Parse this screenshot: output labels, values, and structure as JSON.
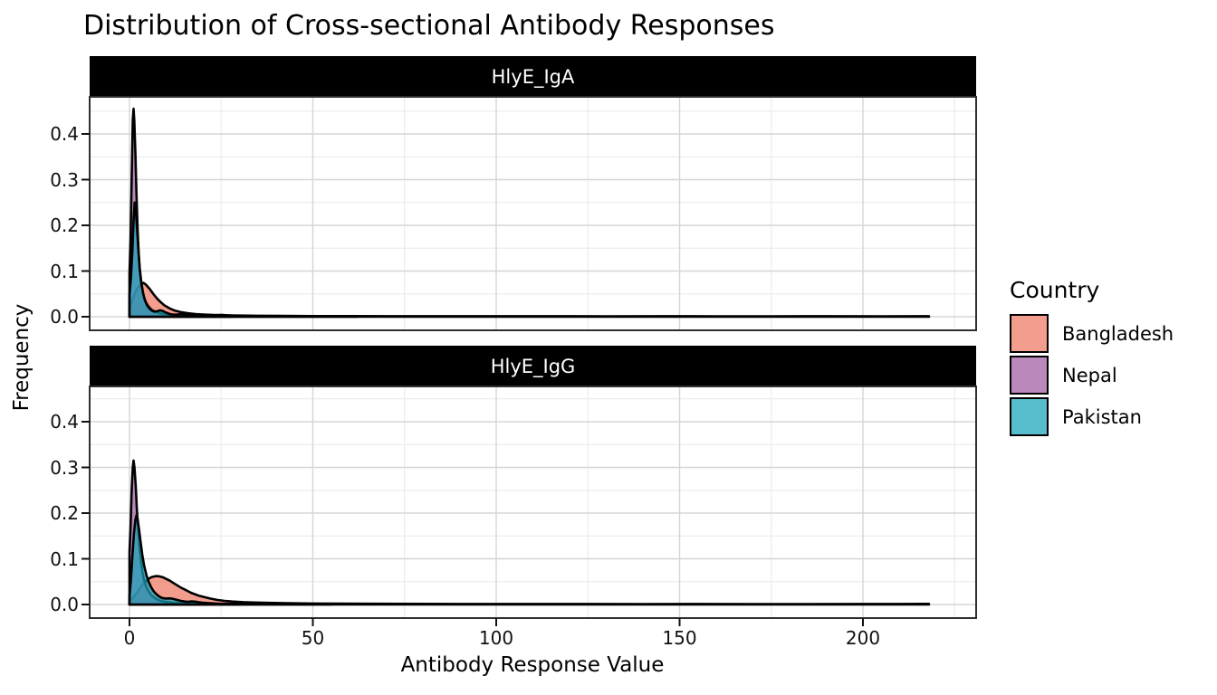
{
  "chart_data": {
    "type": "area",
    "title": "Distribution of Cross-sectional Antibody Responses",
    "xlabel": "Antibody Response Value",
    "ylabel": "Frequency",
    "legend_title": "Country",
    "legend_position": "right",
    "grid": "major+minor",
    "background": "#FFFFFF",
    "strip_bg": "#000000",
    "strip_fg": "#FFFFFF",
    "outline_color": "#000000",
    "grid_major_color": "#D5D5D5",
    "grid_minor_color": "#ECECEC",
    "panel_border_color": "#2E2E2E",
    "xlim": [
      -10.9,
      230.9
    ],
    "ylim": [
      -0.03,
      0.48
    ],
    "x_ticks": [
      {
        "value": 0,
        "label": "0"
      },
      {
        "value": 50,
        "label": "50"
      },
      {
        "value": 100,
        "label": "100"
      },
      {
        "value": 150,
        "label": "150"
      },
      {
        "value": 200,
        "label": "200"
      }
    ],
    "x_minor_ticks": [
      25,
      75,
      125,
      175,
      225
    ],
    "y_ticks": [
      {
        "value": 0.0,
        "label": "0.0"
      },
      {
        "value": 0.1,
        "label": "0.1"
      },
      {
        "value": 0.2,
        "label": "0.2"
      },
      {
        "value": 0.3,
        "label": "0.3"
      },
      {
        "value": 0.4,
        "label": "0.4"
      }
    ],
    "y_minor_ticks": [
      0.05,
      0.15,
      0.25,
      0.35,
      0.45
    ],
    "countries": [
      {
        "name": "Bangladesh",
        "fill": "rgba(238,119,98,0.72)",
        "swatch": "#F29D8E"
      },
      {
        "name": "Nepal",
        "fill": "rgba(160,90,160,0.72)",
        "swatch": "#BA88BA"
      },
      {
        "name": "Pakistan",
        "fill": "rgba(22,163,184,0.72)",
        "swatch": "#57BCCC"
      }
    ],
    "facets": [
      {
        "label": "HlyE_IgA",
        "series": [
          {
            "name": "Bangladesh",
            "peak_x": 3.8,
            "peak_y": 0.074,
            "points": [
              [
                0,
                0.018
              ],
              [
                1,
                0.042
              ],
              [
                2,
                0.06
              ],
              [
                3,
                0.071
              ],
              [
                3.8,
                0.074
              ],
              [
                4.5,
                0.07
              ],
              [
                5.5,
                0.061
              ],
              [
                6.5,
                0.05
              ],
              [
                7.5,
                0.04
              ],
              [
                8.5,
                0.032
              ],
              [
                9.5,
                0.025
              ],
              [
                11,
                0.018
              ],
              [
                12.5,
                0.013
              ],
              [
                14,
                0.01
              ],
              [
                16,
                0.0075
              ],
              [
                18,
                0.006
              ],
              [
                20,
                0.005
              ],
              [
                23,
                0.004
              ],
              [
                26,
                0.0032
              ],
              [
                30,
                0.0026
              ],
              [
                35,
                0.0021
              ],
              [
                42,
                0.0017
              ],
              [
                50,
                0.0014
              ],
              [
                60,
                0.0013
              ],
              [
                72,
                0.0012
              ],
              [
                85,
                0.0012
              ],
              [
                100,
                0.0011
              ],
              [
                115,
                0.0012
              ],
              [
                130,
                0.001
              ],
              [
                145,
                0.0011
              ],
              [
                160,
                0.001
              ],
              [
                175,
                0.001
              ],
              [
                190,
                0.0011
              ],
              [
                205,
                0.001
              ],
              [
                218,
                0.0012
              ]
            ]
          },
          {
            "name": "Nepal",
            "peak_x": 1.1,
            "peak_y": 0.455,
            "points": [
              [
                0,
                0.095
              ],
              [
                0.3,
                0.17
              ],
              [
                0.6,
                0.3
              ],
              [
                0.9,
                0.43
              ],
              [
                1.1,
                0.455
              ],
              [
                1.3,
                0.43
              ],
              [
                1.6,
                0.36
              ],
              [
                1.9,
                0.27
              ],
              [
                2.2,
                0.195
              ],
              [
                2.5,
                0.14
              ],
              [
                2.8,
                0.105
              ],
              [
                3.2,
                0.075
              ],
              [
                3.6,
                0.055
              ],
              [
                4,
                0.042
              ],
              [
                4.5,
                0.031
              ],
              [
                5,
                0.024
              ],
              [
                6,
                0.015
              ],
              [
                7,
                0.011
              ],
              [
                8,
                0.008
              ],
              [
                9,
                0.0065
              ],
              [
                10,
                0.005
              ],
              [
                12,
                0.0035
              ],
              [
                14,
                0.0025
              ],
              [
                17,
                0.002
              ],
              [
                20,
                0.0015
              ],
              [
                24,
                0.001
              ],
              [
                28,
                0.0008
              ]
            ]
          },
          {
            "name": "Pakistan",
            "peak_x": 1.4,
            "peak_y": 0.25,
            "points": [
              [
                0,
                0.048
              ],
              [
                0.4,
                0.085
              ],
              [
                0.8,
                0.145
              ],
              [
                1.1,
                0.21
              ],
              [
                1.4,
                0.25
              ],
              [
                1.7,
                0.24
              ],
              [
                2,
                0.2
              ],
              [
                2.4,
                0.15
              ],
              [
                2.8,
                0.105
              ],
              [
                3.2,
                0.075
              ],
              [
                3.7,
                0.051
              ],
              [
                4.2,
                0.036
              ],
              [
                4.8,
                0.025
              ],
              [
                5.4,
                0.018
              ],
              [
                6,
                0.014
              ],
              [
                6.8,
                0.011
              ],
              [
                7.6,
                0.012
              ],
              [
                8.4,
                0.014
              ],
              [
                9.2,
                0.012
              ],
              [
                10,
                0.009
              ],
              [
                11,
                0.006
              ],
              [
                12,
                0.0045
              ],
              [
                13,
                0.005
              ],
              [
                14,
                0.0055
              ],
              [
                15,
                0.005
              ],
              [
                16,
                0.004
              ],
              [
                17.5,
                0.003
              ],
              [
                19,
                0.002
              ],
              [
                21,
                0.0016
              ],
              [
                23,
                0.0028
              ],
              [
                25,
                0.0042
              ],
              [
                27,
                0.003
              ],
              [
                29,
                0.0018
              ],
              [
                32,
                0.001
              ],
              [
                36,
                0.0008
              ],
              [
                42,
                0.0006
              ],
              [
                50,
                0.0005
              ],
              [
                58,
                0.0004
              ],
              [
                62,
                0.0003
              ]
            ]
          }
        ]
      },
      {
        "label": "HlyE_IgG",
        "series": [
          {
            "name": "Bangladesh",
            "peak_x": 7.5,
            "peak_y": 0.062,
            "points": [
              [
                0,
                0.008
              ],
              [
                1,
                0.015
              ],
              [
                2,
                0.026
              ],
              [
                3,
                0.038
              ],
              [
                4,
                0.048
              ],
              [
                5,
                0.055
              ],
              [
                6,
                0.06
              ],
              [
                7,
                0.062
              ],
              [
                8,
                0.062
              ],
              [
                9,
                0.06
              ],
              [
                10,
                0.056
              ],
              [
                11,
                0.052
              ],
              [
                12,
                0.047
              ],
              [
                13,
                0.042
              ],
              [
                14,
                0.037
              ],
              [
                15,
                0.033
              ],
              [
                16,
                0.029
              ],
              [
                17,
                0.025
              ],
              [
                18,
                0.022
              ],
              [
                19,
                0.019
              ],
              [
                20,
                0.017
              ],
              [
                22,
                0.013
              ],
              [
                24,
                0.01
              ],
              [
                26,
                0.008
              ],
              [
                28,
                0.0066
              ],
              [
                31,
                0.0052
              ],
              [
                34,
                0.0043
              ],
              [
                38,
                0.0035
              ],
              [
                43,
                0.0028
              ],
              [
                50,
                0.0022
              ],
              [
                58,
                0.0018
              ],
              [
                68,
                0.0015
              ],
              [
                80,
                0.0013
              ],
              [
                95,
                0.0012
              ],
              [
                110,
                0.0012
              ],
              [
                125,
                0.0011
              ],
              [
                140,
                0.001
              ],
              [
                155,
                0.0011
              ],
              [
                170,
                0.001
              ],
              [
                185,
                0.001
              ],
              [
                200,
                0.0011
              ],
              [
                210,
                0.0012
              ],
              [
                218,
                0.0013
              ]
            ]
          },
          {
            "name": "Nepal",
            "peak_x": 1.1,
            "peak_y": 0.315,
            "points": [
              [
                0,
                0.115
              ],
              [
                0.3,
                0.17
              ],
              [
                0.6,
                0.25
              ],
              [
                0.9,
                0.3
              ],
              [
                1.1,
                0.315
              ],
              [
                1.35,
                0.3
              ],
              [
                1.7,
                0.26
              ],
              [
                2,
                0.21
              ],
              [
                2.4,
                0.16
              ],
              [
                2.8,
                0.12
              ],
              [
                3.2,
                0.09
              ],
              [
                3.6,
                0.068
              ],
              [
                4,
                0.053
              ],
              [
                4.5,
                0.04
              ],
              [
                5,
                0.031
              ],
              [
                6,
                0.02
              ],
              [
                7,
                0.0135
              ],
              [
                8,
                0.0095
              ],
              [
                9,
                0.007
              ],
              [
                10,
                0.0055
              ],
              [
                12,
                0.004
              ],
              [
                14,
                0.003
              ],
              [
                16,
                0.0025
              ],
              [
                19,
                0.002
              ],
              [
                22,
                0.0015
              ],
              [
                26,
                0.001
              ],
              [
                30,
                0.0008
              ]
            ]
          },
          {
            "name": "Pakistan",
            "peak_x": 1.9,
            "peak_y": 0.195,
            "points": [
              [
                0,
                0.018
              ],
              [
                0.4,
                0.055
              ],
              [
                0.8,
                0.105
              ],
              [
                1.2,
                0.155
              ],
              [
                1.6,
                0.185
              ],
              [
                1.9,
                0.195
              ],
              [
                2.2,
                0.188
              ],
              [
                2.6,
                0.165
              ],
              [
                3,
                0.138
              ],
              [
                3.5,
                0.108
              ],
              [
                4,
                0.085
              ],
              [
                4.6,
                0.065
              ],
              [
                5.2,
                0.05
              ],
              [
                5.9,
                0.038
              ],
              [
                6.6,
                0.029
              ],
              [
                7.4,
                0.022
              ],
              [
                8.2,
                0.017
              ],
              [
                9,
                0.014
              ],
              [
                10,
                0.013
              ],
              [
                11,
                0.0135
              ],
              [
                12,
                0.012
              ],
              [
                13,
                0.01
              ],
              [
                14,
                0.008
              ],
              [
                15,
                0.0065
              ],
              [
                16,
                0.006
              ],
              [
                17,
                0.0068
              ],
              [
                18,
                0.0062
              ],
              [
                19,
                0.005
              ],
              [
                20,
                0.004
              ],
              [
                22,
                0.0028
              ],
              [
                24,
                0.002
              ],
              [
                27,
                0.0015
              ],
              [
                30,
                0.0011
              ],
              [
                34,
                0.0008
              ],
              [
                40,
                0.0006
              ],
              [
                48,
                0.0005
              ],
              [
                55,
                0.0004
              ]
            ]
          }
        ]
      }
    ]
  }
}
